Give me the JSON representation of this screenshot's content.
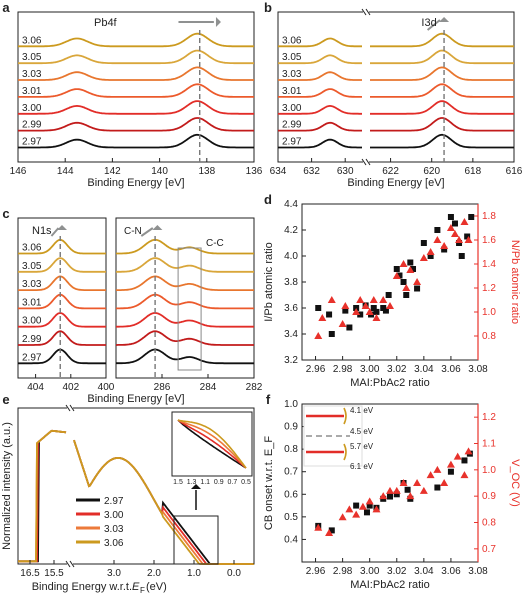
{
  "chart_data": [
    {
      "panel": "a",
      "type": "line",
      "title": "Pb4f",
      "xlabel": "Binding Energy [eV]",
      "ylabel": "",
      "xlim": [
        146,
        136
      ],
      "xticks": [
        146,
        144,
        142,
        140,
        138,
        136
      ],
      "series_labels": [
        "3.06",
        "3.05",
        "3.03",
        "3.01",
        "3.00",
        "2.99",
        "2.97"
      ],
      "peaks_eV": [
        143.5,
        138.4
      ],
      "dashed_line_at": 138.3
    },
    {
      "panel": "b",
      "type": "line",
      "title": "I3d",
      "xlabel": "Binding Energy [eV]",
      "ylabel": "",
      "xlim": [
        634,
        616
      ],
      "axis_break": [
        629,
        623
      ],
      "xticks": [
        634,
        632,
        630,
        622,
        620,
        618,
        616
      ],
      "series_labels": [
        "3.06",
        "3.05",
        "3.03",
        "3.01",
        "3.00",
        "2.99",
        "2.97"
      ],
      "peaks_eV": [
        630.9,
        619.5
      ],
      "dashed_line_at": 619.4
    },
    {
      "panel": "c",
      "type": "line",
      "title": "N1s",
      "xlabel": "Binding Energy [eV]",
      "ylabel": "",
      "annotations": [
        "C-N",
        "C-C"
      ],
      "xticks_left": [
        404,
        402,
        400
      ],
      "xticks_right": [
        286,
        284,
        282
      ],
      "series_labels": [
        "3.06",
        "3.05",
        "3.03",
        "3.01",
        "3.00",
        "2.99",
        "2.97"
      ],
      "peaks_eV": [
        402.6,
        286.3,
        284.8
      ]
    },
    {
      "panel": "d",
      "type": "scatter",
      "xlabel": "MAI:PbAc2 ratio",
      "ylabel": "I/Pb atomic ratio",
      "ylabel_right": "N/Pb atomic ratio",
      "xlim": [
        2.95,
        3.08
      ],
      "ylim": [
        3.2,
        4.4
      ],
      "ylim_right": [
        0.6,
        1.9
      ],
      "xticks": [
        "2.96",
        "2.98",
        "3.00",
        "3.02",
        "3.04",
        "3.06",
        "3.08"
      ],
      "yticks": [
        "3.2",
        "3.4",
        "3.6",
        "3.8",
        "4.0",
        "4.2",
        "4.4"
      ],
      "yticks_right": [
        "0.8",
        "1.0",
        "1.2",
        "1.4",
        "1.6",
        "1.8"
      ],
      "series": [
        {
          "marker": "square",
          "x": [
            2.962,
            2.97,
            2.972,
            2.982,
            2.985,
            2.99,
            2.993,
            2.997,
            3.001,
            3.003,
            3.005,
            3.01,
            3.012,
            3.014,
            3.02,
            3.022,
            3.025,
            3.027,
            3.03,
            3.032,
            3.035,
            3.04,
            3.045,
            3.05,
            3.055,
            3.06,
            3.063,
            3.066,
            3.068,
            3.072,
            3.075
          ],
          "y": [
            3.6,
            3.55,
            3.4,
            3.58,
            3.45,
            3.6,
            3.55,
            3.62,
            3.55,
            3.6,
            3.57,
            3.6,
            3.58,
            3.7,
            3.9,
            3.85,
            3.8,
            3.7,
            3.95,
            3.9,
            3.75,
            4.1,
            4.0,
            4.2,
            4.05,
            4.3,
            4.25,
            4.1,
            4.0,
            4.15,
            4.3
          ]
        },
        {
          "marker": "triangle",
          "x": [
            2.962,
            2.965,
            2.972,
            2.98,
            2.982,
            2.99,
            2.993,
            2.997,
            3.0,
            3.003,
            3.005,
            3.01,
            3.015,
            3.02,
            3.025,
            3.027,
            3.03,
            3.035,
            3.04,
            3.045,
            3.05,
            3.055,
            3.06,
            3.063,
            3.066,
            3.07,
            3.073
          ],
          "y": [
            0.8,
            0.95,
            1.1,
            0.9,
            1.05,
            1.0,
            1.1,
            1.05,
            1.0,
            1.1,
            0.95,
            1.1,
            1.05,
            1.3,
            1.4,
            1.2,
            1.35,
            1.25,
            1.45,
            1.5,
            1.6,
            1.55,
            1.7,
            1.65,
            1.6,
            1.75,
            1.6
          ]
        }
      ]
    },
    {
      "panel": "e",
      "type": "line",
      "xlabel": "Binding Energy w.r.t. E_F (eV)",
      "ylabel": "Normalized intensity (a.u.)",
      "xticks": [
        "16.5",
        "15.5",
        "3.0",
        "2.0",
        "1.0",
        "0.0"
      ],
      "inset_xticks": [
        "1.5",
        "1.3",
        "1.1",
        "0.9",
        "0.7",
        "0.5"
      ],
      "legend": [
        "2.97",
        "3.00",
        "3.03",
        "3.06"
      ]
    },
    {
      "panel": "f",
      "type": "scatter",
      "xlabel": "MAI:PbAc2 ratio",
      "ylabel": "CB onset w.r.t. E_F",
      "ylabel_right": "V_OC (V)",
      "xlim": [
        2.95,
        3.08
      ],
      "ylim": [
        0.3,
        1.0
      ],
      "ylim_right": [
        0.65,
        1.25
      ],
      "xticks": [
        "2.96",
        "2.98",
        "3.00",
        "3.02",
        "3.04",
        "3.06",
        "3.08"
      ],
      "yticks": [
        "0.4",
        "0.5",
        "0.6",
        "0.7",
        "0.8",
        "0.9",
        "1.0"
      ],
      "yticks_right": [
        "0.7",
        "0.8",
        "0.9",
        "1.0",
        "1.1",
        "1.2"
      ],
      "inset_labels": [
        "4.1 eV",
        "4.5 eV",
        "5.7 eV",
        "6.1 eV"
      ],
      "series": [
        {
          "marker": "square",
          "x": [
            2.962,
            2.972,
            2.99,
            2.998,
            3.0,
            3.005,
            3.01,
            3.015,
            3.02,
            3.025,
            3.028,
            3.03,
            3.05,
            3.06,
            3.07,
            3.074
          ],
          "y": [
            0.46,
            0.44,
            0.55,
            0.52,
            0.55,
            0.54,
            0.58,
            0.59,
            0.6,
            0.65,
            0.62,
            0.58,
            0.63,
            0.7,
            0.75,
            0.78
          ]
        },
        {
          "marker": "triangle",
          "x": [
            2.962,
            2.97,
            2.98,
            2.985,
            2.99,
            2.995,
            3.0,
            3.005,
            3.01,
            3.015,
            3.02,
            3.025,
            3.03,
            3.035,
            3.04,
            3.045,
            3.05,
            3.055,
            3.06,
            3.065,
            3.07,
            3.073
          ],
          "y": [
            0.78,
            0.76,
            0.82,
            0.85,
            0.83,
            0.86,
            0.88,
            0.85,
            0.9,
            0.92,
            0.92,
            0.95,
            0.9,
            0.95,
            0.92,
            0.98,
            1.0,
            0.95,
            1.02,
            1.05,
            0.98,
            1.07
          ]
        }
      ]
    }
  ],
  "panel_letters": [
    "a",
    "b",
    "c",
    "d",
    "e",
    "f"
  ],
  "colors": {
    "red_axis": "#e8322b",
    "gray_arrow": "#8f9191",
    "series": [
      "#cc9a1f",
      "#d9a63a",
      "#e8762e",
      "#ec5a2c",
      "#e22d28",
      "#c21b1b",
      "#111111"
    ]
  }
}
